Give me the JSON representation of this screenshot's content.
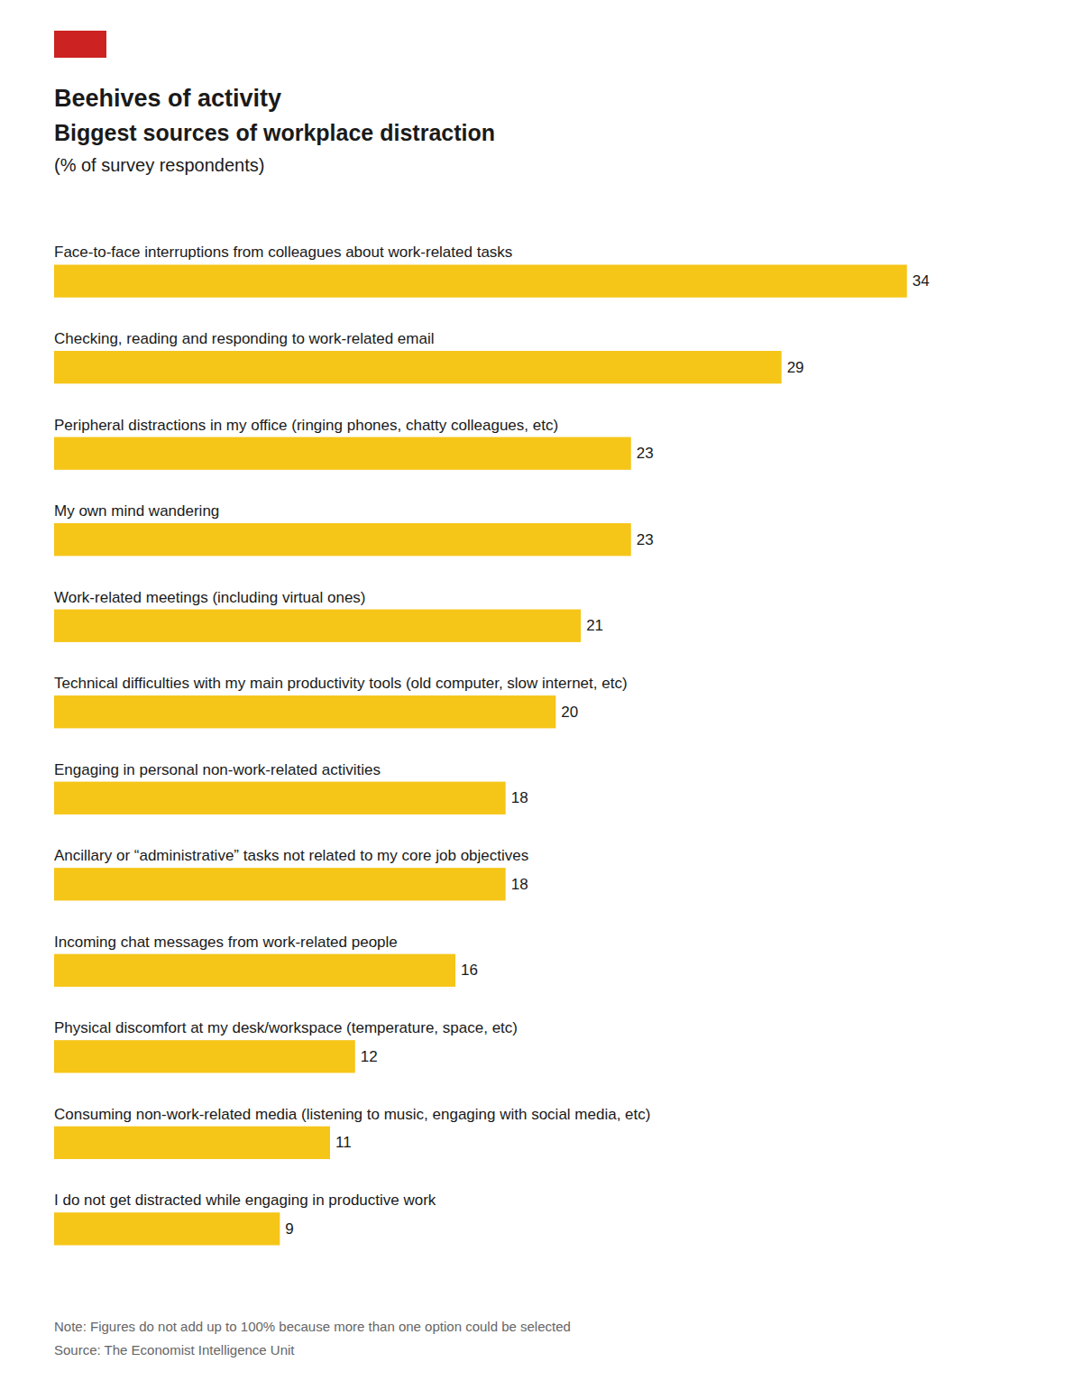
{
  "chart_data": {
    "type": "bar",
    "orientation": "horizontal",
    "title": "Beehives of activity",
    "subtitle": "Biggest sources of workplace distraction",
    "annotations": [
      "(% of survey respondents)",
      "Note: Figures do not add up to 100% because more than one option could be selected",
      "Source: The Economist Intelligence Unit"
    ],
    "categories": [
      "Face-to-face interruptions from colleagues about work-related tasks",
      "Checking, reading and responding to work-related email",
      "Peripheral distractions in my office (ringing phones, chatty colleagues, etc)",
      "My own mind wandering",
      "Work-related meetings (including virtual ones)",
      "Technical difficulties with my main productivity tools (old computer, slow internet, etc)",
      "Engaging in personal non-work-related activities",
      "Ancillary or “administrative” tasks not related to my core job objectives",
      "Incoming chat messages from work-related people",
      "Physical discomfort at my desk/workspace (temperature, space, etc)",
      "Consuming non-work-related media (listening to music, engaging with social media, etc)",
      "I do not get distracted while engaging in productive work"
    ],
    "values": [
      34,
      29,
      23,
      23,
      21,
      20,
      18,
      18,
      16,
      12,
      11,
      9
    ],
    "color": "#F5C518",
    "xlim": [
      0,
      38
    ],
    "grid": false,
    "data_labels": true,
    "tick_labels": false
  }
}
